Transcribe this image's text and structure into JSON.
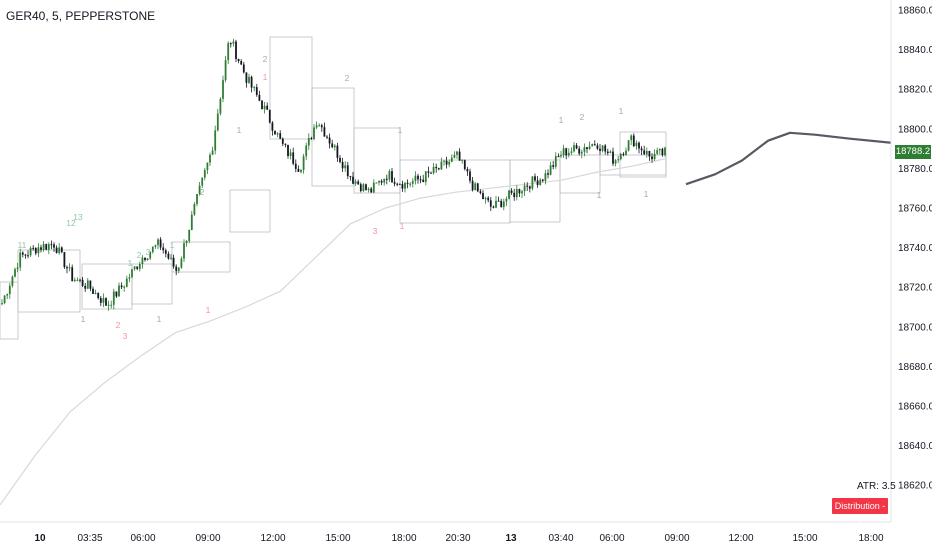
{
  "header": {
    "symbol_title": "GER40, 5, PEPPERSTONE"
  },
  "indicators": {
    "atr_label": "ATR: 3.5",
    "distribution_badge": "Distribution - 1",
    "last_price": "18788.2",
    "last_price_color": "#2e7d32",
    "badge_color": "#f23645",
    "marker_colors": {
      "green": "#8fc9a5",
      "red": "#f0959c",
      "gray": "#a6a8ad"
    }
  },
  "chart_data": {
    "type": "candlestick",
    "title": "GER40, 5, PEPPERSTONE",
    "xlabel": "",
    "ylabel": "",
    "ylim": [
      18600,
      18865
    ],
    "y_ticks": [
      "18860.0",
      "18840.0",
      "18820.0",
      "18800.0",
      "18780.0",
      "18760.0",
      "18740.0",
      "18720.0",
      "18700.0",
      "18680.0",
      "18660.0",
      "18640.0",
      "18620.0"
    ],
    "x_ticks": [
      "10",
      "03:35",
      "06:00",
      "09:00",
      "12:00",
      "15:00",
      "18:00",
      "20:30",
      "13",
      "03:40",
      "06:00",
      "09:00",
      "12:00",
      "15:00",
      "18:00"
    ],
    "grid": false,
    "series": [
      {
        "name": "",
        "type": "ohlc_close",
        "values": [
          18712,
          18735,
          18740,
          18742,
          18725,
          18720,
          18711,
          18722,
          18735,
          18742,
          18728,
          18760,
          18790,
          18846,
          18825,
          18810,
          18792,
          18780,
          18805,
          18790,
          18775,
          18768,
          18777,
          18772,
          18775,
          18780,
          18786,
          18770,
          18760,
          18766,
          18772,
          18776,
          18788,
          18790,
          18793,
          18784,
          18795,
          18786,
          18788
        ]
      },
      {
        "name": "",
        "type": "moving_average",
        "values": [
          18610,
          18635,
          18657,
          18672,
          18685,
          18697,
          18703,
          18710,
          18718,
          18735,
          18752,
          18760,
          18765,
          18768,
          18770,
          18772,
          18774,
          18778,
          18781,
          18785
        ]
      },
      {
        "name": "",
        "type": "projection",
        "values": [
          18772,
          18777,
          18784,
          18794,
          18798,
          18797,
          18795,
          18793
        ]
      }
    ],
    "markers": [
      {
        "label": "11",
        "color": "green"
      },
      {
        "label": "12",
        "color": "green"
      },
      {
        "label": "13",
        "color": "green"
      },
      {
        "label": "1",
        "color": "green"
      },
      {
        "label": "2",
        "color": "green"
      },
      {
        "label": "3",
        "color": "green"
      },
      {
        "label": "1",
        "color": "green"
      },
      {
        "label": "2",
        "color": "gray"
      },
      {
        "label": "1",
        "color": "gray"
      },
      {
        "label": "2",
        "color": "gray"
      },
      {
        "label": "2",
        "color": "gray"
      },
      {
        "label": "1",
        "color": "gray"
      },
      {
        "label": "1",
        "color": "gray"
      },
      {
        "label": "2",
        "color": "gray"
      },
      {
        "label": "1",
        "color": "gray"
      },
      {
        "label": "1",
        "color": "gray"
      },
      {
        "label": "1",
        "color": "gray"
      },
      {
        "label": "1",
        "color": "gray"
      },
      {
        "label": "2",
        "color": "red"
      },
      {
        "label": "3",
        "color": "red"
      },
      {
        "label": "1",
        "color": "gray"
      },
      {
        "label": "1",
        "color": "red"
      },
      {
        "label": "3",
        "color": "red"
      },
      {
        "label": "1",
        "color": "red"
      },
      {
        "label": "1",
        "color": "red"
      }
    ]
  }
}
